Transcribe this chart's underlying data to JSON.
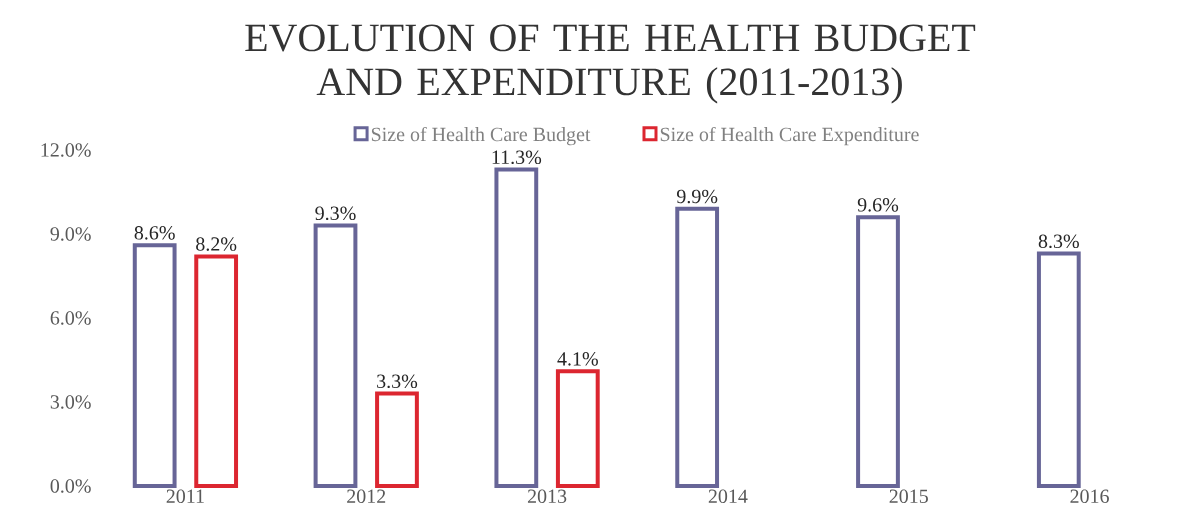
{
  "chart_data": {
    "type": "bar",
    "title": "EVOLUTION OF THE HEALTH BUDGET AND EXPENDITURE (2011-2013)",
    "categories": [
      "2011",
      "2012",
      "2013",
      "2014",
      "2015",
      "2016"
    ],
    "series": [
      {
        "name": "Size of Health Care Budget",
        "color": "#676597",
        "values": [
          8.6,
          9.3,
          11.3,
          9.9,
          9.6,
          8.3
        ],
        "value_labels": [
          "8.6%",
          "9.3%",
          "11.3%",
          "9.9%",
          "9.6%",
          "8.3%"
        ]
      },
      {
        "name": "Size of Health Care Expenditure",
        "color": "#dc2630",
        "values": [
          8.2,
          3.3,
          4.1,
          null,
          null,
          null
        ],
        "value_labels": [
          "8.2%",
          "3.3%",
          "4.1%",
          null,
          null,
          null
        ]
      }
    ],
    "ylim": [
      0,
      12
    ],
    "yticks": [
      {
        "value": 0,
        "label": "0.0%"
      },
      {
        "value": 3,
        "label": "3.0%"
      },
      {
        "value": 6,
        "label": "6.0%"
      },
      {
        "value": 9,
        "label": "9.0%"
      },
      {
        "value": 12,
        "label": "12.0%"
      }
    ],
    "legend": "top"
  }
}
